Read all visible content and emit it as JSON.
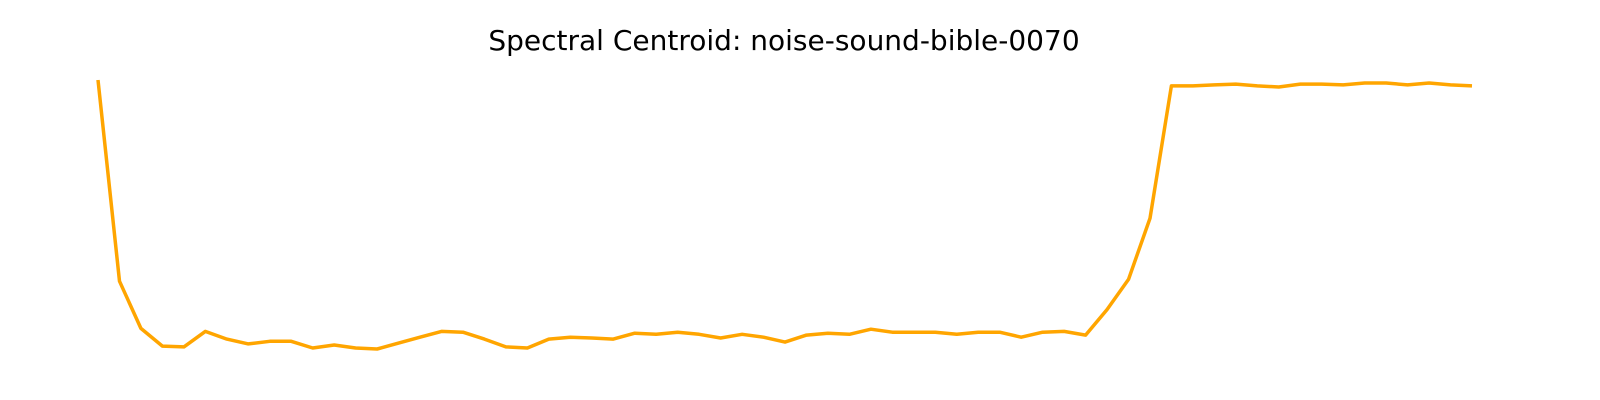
{
  "chart_data": {
    "type": "line",
    "title": "Spectral Centroid: noise-sound-bible-0070",
    "xlabel": "",
    "ylabel": "",
    "axes_visible": false,
    "grid": false,
    "legend": "none",
    "x": [
      0,
      1,
      2,
      3,
      4,
      5,
      6,
      7,
      8,
      9,
      10,
      11,
      12,
      13,
      14,
      15,
      16,
      17,
      18,
      19,
      20,
      21,
      22,
      23,
      24,
      25,
      26,
      27,
      28,
      29,
      30,
      31,
      32,
      33,
      34,
      35,
      36,
      37,
      38,
      39,
      40,
      41,
      42,
      43,
      44,
      45,
      46,
      47,
      48,
      49,
      50,
      51,
      52,
      53,
      54,
      55,
      56,
      57,
      58,
      59,
      60,
      61,
      62,
      63,
      64
    ],
    "series": [
      {
        "color": "#ffa500",
        "values": [
          100,
          24.9,
          7.3,
          0.7,
          0.4,
          6.2,
          3.3,
          1.5,
          2.5,
          2.5,
          0,
          1.1,
          0,
          -0.4,
          1.8,
          4,
          6.2,
          5.9,
          3.3,
          0.4,
          0,
          3.3,
          4,
          3.7,
          3.3,
          5.5,
          5.1,
          5.9,
          5.1,
          3.7,
          5.1,
          4,
          2.2,
          4.8,
          5.5,
          5.1,
          7,
          5.9,
          5.9,
          5.9,
          5.1,
          5.9,
          5.9,
          4,
          5.9,
          6.2,
          4.8,
          14.3,
          25.6,
          48.4,
          97.8,
          97.8,
          98.2,
          98.5,
          97.8,
          97.4,
          98.5,
          98.5,
          98.2,
          98.9,
          98.9,
          98.2,
          98.9,
          98.2,
          97.8
        ]
      }
    ],
    "ylim": [
      -3,
      103
    ]
  }
}
